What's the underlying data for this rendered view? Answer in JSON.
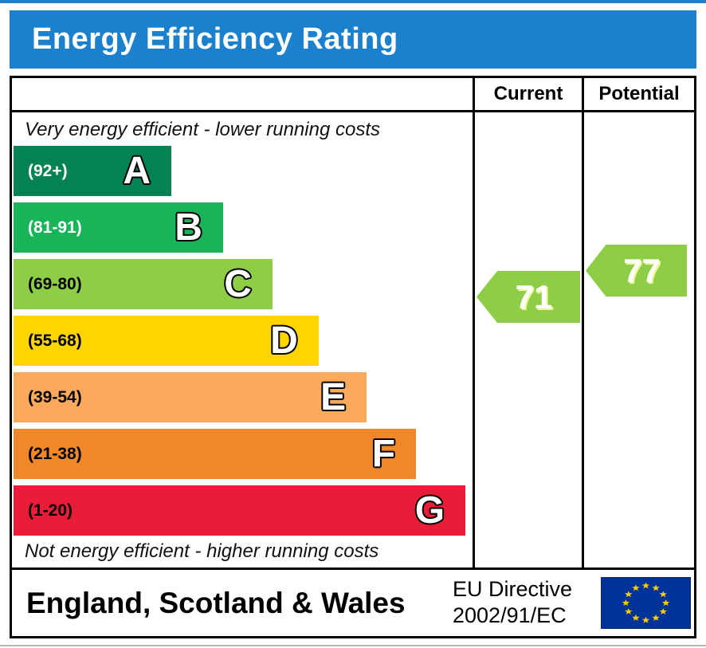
{
  "title": "Energy Efficiency Rating",
  "colors": {
    "header_bg": "#1b80cd",
    "border": "#000000",
    "arrow": "#8dce46",
    "eu_flag_blue": "#003399",
    "eu_star_yellow": "#ffcc00"
  },
  "table": {
    "current_label": "Current",
    "potential_label": "Potential"
  },
  "chart_data": {
    "type": "bar",
    "title": "Energy Efficiency Rating",
    "top_note": "Very energy efficient - lower running costs",
    "bottom_note": "Not energy efficient - higher running costs",
    "bands": [
      {
        "letter": "A",
        "range": "(92+)",
        "min": 92,
        "max": 100,
        "color": "#038352",
        "label_color": "#ffffff",
        "width_pct": "34.5%"
      },
      {
        "letter": "B",
        "range": "(81-91)",
        "min": 81,
        "max": 91,
        "color": "#17b459",
        "label_color": "#ffffff",
        "width_pct": "45.8%"
      },
      {
        "letter": "C",
        "range": "(69-80)",
        "min": 69,
        "max": 80,
        "color": "#8dce46",
        "label_color": "#000000",
        "width_pct": "56.6%"
      },
      {
        "letter": "D",
        "range": "(55-68)",
        "min": 55,
        "max": 68,
        "color": "#ffd500",
        "label_color": "#000000",
        "width_pct": "66.7%"
      },
      {
        "letter": "E",
        "range": "(39-54)",
        "min": 39,
        "max": 54,
        "color": "#fbaa5c",
        "label_color": "#000000",
        "width_pct": "77.2%"
      },
      {
        "letter": "F",
        "range": "(21-38)",
        "min": 21,
        "max": 38,
        "color": "#f0872a",
        "label_color": "#000000",
        "width_pct": "88.0%"
      },
      {
        "letter": "G",
        "range": "(1-20)",
        "min": 1,
        "max": 20,
        "color": "#eb1c38",
        "label_color": "#000000",
        "width_pct": "98.8%"
      }
    ],
    "current": {
      "value": 71,
      "band": "C"
    },
    "potential": {
      "value": 77,
      "band": "C"
    }
  },
  "footer": {
    "region": "England, Scotland & Wales",
    "directive_line1": "EU Directive",
    "directive_line2": "2002/91/EC"
  }
}
